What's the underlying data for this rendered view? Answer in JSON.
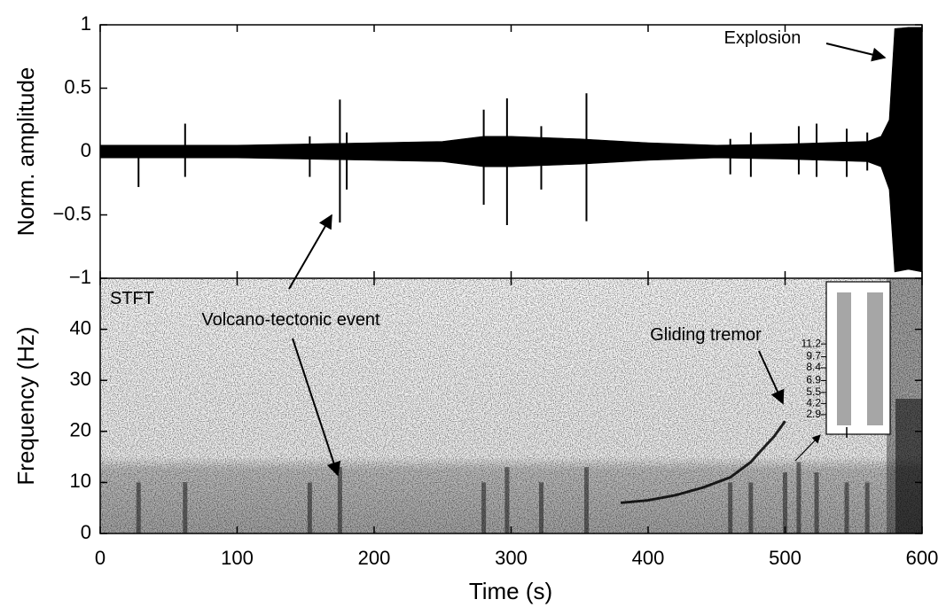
{
  "chart_data": [
    {
      "type": "waveform",
      "ylabel": "Norm. amplitude",
      "annotation": "Explosion",
      "xlim": [
        0,
        600
      ],
      "xticks": [
        0,
        100,
        200,
        300,
        400,
        500,
        600
      ],
      "ylim": [
        -1,
        1
      ],
      "yticks": [
        {
          "value": -1,
          "label": "−1"
        },
        {
          "value": -0.5,
          "label": "−0.5"
        },
        0,
        0.5,
        1
      ],
      "color": "#000000",
      "envelope": {
        "x": [
          0,
          50,
          100,
          150,
          200,
          250,
          280,
          300,
          350,
          400,
          450,
          500,
          560,
          570,
          576,
          580,
          590,
          600
        ],
        "upper": [
          0.05,
          0.05,
          0.05,
          0.06,
          0.07,
          0.08,
          0.12,
          0.12,
          0.1,
          0.07,
          0.05,
          0.06,
          0.08,
          0.12,
          0.25,
          0.97,
          0.98,
          0.98
        ],
        "lower": [
          -0.05,
          -0.05,
          -0.05,
          -0.06,
          -0.07,
          -0.08,
          -0.12,
          -0.12,
          -0.1,
          -0.07,
          -0.05,
          -0.06,
          -0.08,
          -0.12,
          -0.3,
          -0.95,
          -0.93,
          -0.95
        ]
      },
      "events": {
        "x": [
          28,
          62,
          153,
          175,
          180,
          280,
          297,
          322,
          355,
          460,
          475,
          510,
          523,
          545,
          560
        ],
        "upper": [
          0.05,
          0.22,
          0.12,
          0.41,
          0.15,
          0.33,
          0.42,
          0.2,
          0.46,
          0.1,
          0.15,
          0.2,
          0.22,
          0.18,
          0.15
        ],
        "lower": [
          -0.28,
          -0.2,
          -0.2,
          -0.56,
          -0.3,
          -0.42,
          -0.58,
          -0.3,
          -0.55,
          -0.18,
          -0.2,
          -0.18,
          -0.2,
          -0.2,
          -0.15
        ]
      }
    },
    {
      "type": "spectrogram",
      "title": "STFT",
      "xlabel": "Time (s)",
      "ylabel": "Frequency (Hz)",
      "annotations": [
        "Volcano-tectonic event",
        "Gliding tremor"
      ],
      "xlim": [
        0,
        600
      ],
      "xticks": [
        0,
        100,
        200,
        300,
        400,
        500,
        600
      ],
      "ylim": [
        0,
        50
      ],
      "yticks": [
        0,
        10,
        20,
        30,
        40
      ],
      "color": "#000000",
      "events": {
        "x": [
          28,
          62,
          153,
          175,
          280,
          297,
          322,
          355,
          460,
          475,
          500,
          510,
          523,
          545,
          560
        ],
        "fmax": [
          10,
          10,
          10,
          13,
          10,
          13,
          10,
          13,
          10,
          10,
          12,
          14,
          12,
          10,
          10
        ]
      },
      "tremor": {
        "x": [
          380,
          400,
          420,
          440,
          460,
          475,
          485,
          492,
          500
        ],
        "y": [
          6,
          6.5,
          7.5,
          9,
          11,
          14,
          17,
          19,
          22
        ]
      },
      "inset": {
        "ylim": [
          0.6,
          18.5
        ],
        "yticks": [
          2.9,
          4.2,
          5.5,
          6.9,
          8.4,
          9.7,
          11.2
        ]
      }
    }
  ]
}
